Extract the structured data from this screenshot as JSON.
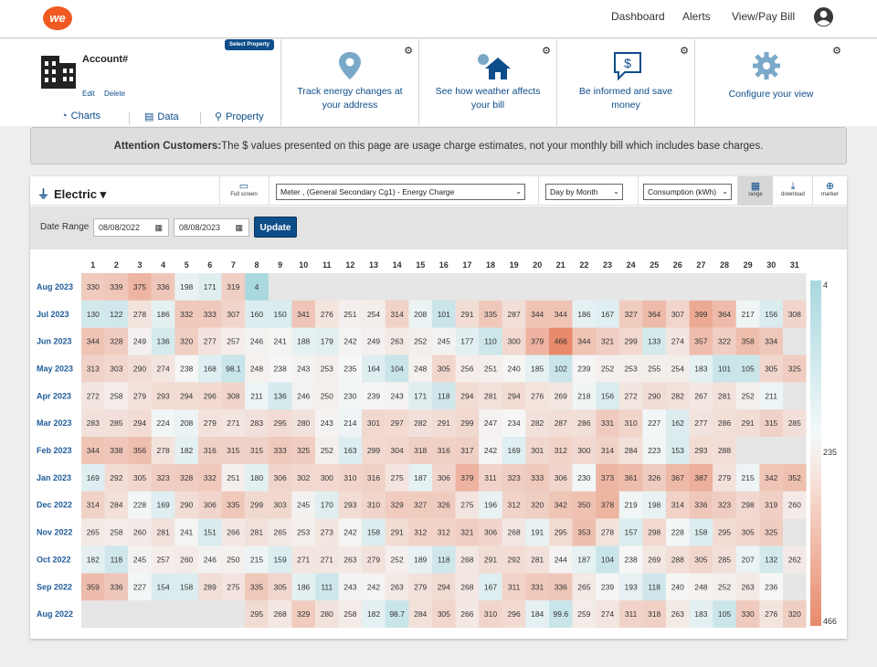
{
  "header": {
    "logo": "we",
    "nav": [
      "Dashboard",
      "Alerts",
      "View/Pay Bill"
    ]
  },
  "account": {
    "title": "Account#",
    "select_property": "Select Property",
    "edit": "Edit",
    "delete": "Delete",
    "tabs": [
      "Charts",
      "Data",
      "Property"
    ]
  },
  "cards": [
    {
      "text": "Track energy changes at your address",
      "icon": "map-pin-icon"
    },
    {
      "text": "See how weather affects your bill",
      "icon": "weather-house-icon"
    },
    {
      "text": "Be informed and save money",
      "icon": "dollar-chat-icon"
    },
    {
      "text": "Configure your view",
      "icon": "gear-icon"
    }
  ],
  "banner": {
    "bold": "Attention Customers:",
    "text": "The $ values presented on this page are usage charge estimates, not your monthly bill which includes base charges."
  },
  "toolbar": {
    "service": "Electric",
    "fullscreen": "Full screen",
    "meter": "Meter                              , (General Secondary Cg1) - Energy Charge",
    "view": "Day by Month",
    "measure": "Consumption (kWh)",
    "range": "range",
    "download": "download",
    "marker": "marker"
  },
  "daterange": {
    "label": "Date Range",
    "start": "08/08/2022",
    "end": "08/08/2023",
    "update": "Update"
  },
  "chart_data": {
    "type": "heatmap",
    "x_labels": [
      "1",
      "2",
      "3",
      "4",
      "5",
      "6",
      "7",
      "8",
      "9",
      "10",
      "11",
      "12",
      "13",
      "14",
      "15",
      "16",
      "17",
      "18",
      "19",
      "20",
      "21",
      "22",
      "23",
      "24",
      "25",
      "26",
      "27",
      "28",
      "29",
      "30",
      "31"
    ],
    "y_labels": [
      "Aug 2023",
      "Jul 2023",
      "Jun 2023",
      "May 2023",
      "Apr 2023",
      "Mar 2023",
      "Feb 2023",
      "Jan 2023",
      "Dec 2022",
      "Nov 2022",
      "Oct 2022",
      "Sep 2022",
      "Aug 2022"
    ],
    "values": [
      [
        330,
        339,
        375,
        336,
        198,
        171,
        319,
        4,
        null,
        null,
        null,
        null,
        null,
        null,
        null,
        null,
        null,
        null,
        null,
        null,
        null,
        null,
        null,
        null,
        null,
        null,
        null,
        null,
        null,
        null,
        null
      ],
      [
        130,
        122,
        278,
        186,
        332,
        333,
        307,
        160,
        150,
        341,
        276,
        251,
        254,
        314,
        208,
        101,
        291,
        335,
        287,
        344,
        344,
        186,
        167,
        327,
        364,
        307,
        399,
        364,
        217,
        156,
        308
      ],
      [
        344,
        328,
        249,
        136,
        320,
        277,
        257,
        246,
        241,
        188,
        179,
        242,
        249,
        263,
        252,
        245,
        177,
        110,
        300,
        379,
        466,
        344,
        321,
        299,
        133,
        274,
        357,
        322,
        358,
        334,
        null
      ],
      [
        313,
        303,
        290,
        274,
        238,
        168,
        98.1,
        248,
        238,
        243,
        253,
        235,
        164,
        104,
        248,
        305,
        256,
        251,
        240,
        185,
        102,
        239,
        252,
        253,
        255,
        254,
        183,
        101,
        105,
        305,
        325
      ],
      [
        272,
        258,
        279,
        293,
        294,
        296,
        308,
        211,
        136,
        246,
        250,
        230,
        239,
        243,
        171,
        118,
        294,
        281,
        294,
        276,
        269,
        218,
        156,
        272,
        290,
        282,
        267,
        281,
        252,
        211,
        null
      ],
      [
        283,
        285,
        294,
        224,
        208,
        279,
        271,
        283,
        295,
        280,
        243,
        214,
        301,
        297,
        282,
        291,
        299,
        247,
        234,
        282,
        287,
        286,
        331,
        310,
        227,
        162,
        277,
        286,
        291,
        315,
        285
      ],
      [
        344,
        338,
        356,
        278,
        182,
        316,
        315,
        315,
        333,
        325,
        252,
        163,
        299,
        304,
        318,
        316,
        317,
        242,
        169,
        301,
        312,
        300,
        314,
        284,
        223,
        153,
        293,
        288,
        null,
        null,
        null
      ],
      [
        169,
        292,
        305,
        323,
        328,
        332,
        251,
        180,
        306,
        302,
        300,
        310,
        316,
        275,
        187,
        306,
        379,
        311,
        323,
        333,
        306,
        230,
        373,
        361,
        326,
        367,
        387,
        279,
        215,
        342,
        352
      ],
      [
        314,
        284,
        228,
        169,
        290,
        306,
        335,
        299,
        303,
        245,
        170,
        293,
        310,
        329,
        327,
        326,
        275,
        196,
        312,
        320,
        342,
        350,
        378,
        219,
        198,
        314,
        336,
        323,
        298,
        319,
        260
      ],
      [
        265,
        258,
        260,
        281,
        241,
        151,
        266,
        281,
        265,
        253,
        273,
        242,
        158,
        291,
        312,
        312,
        321,
        306,
        268,
        191,
        295,
        353,
        278,
        157,
        298,
        228,
        158,
        295,
        305,
        325,
        null
      ],
      [
        182,
        118,
        245,
        257,
        260,
        246,
        250,
        215,
        159,
        271,
        271,
        263,
        279,
        252,
        189,
        118,
        268,
        291,
        292,
        281,
        244,
        187,
        104,
        238,
        269,
        288,
        305,
        285,
        207,
        132,
        262
      ],
      [
        359,
        336,
        227,
        154,
        158,
        289,
        275,
        335,
        305,
        186,
        111,
        243,
        242,
        263,
        279,
        294,
        268,
        167,
        311,
        331,
        336,
        265,
        239,
        193,
        118,
        240,
        248,
        252,
        263,
        236,
        null
      ],
      [
        null,
        null,
        null,
        null,
        null,
        null,
        null,
        295,
        268,
        329,
        280,
        258,
        182,
        98.7,
        284,
        305,
        266,
        310,
        296,
        184,
        99.6,
        259,
        274,
        311,
        318,
        263,
        183,
        105,
        330,
        276,
        320
      ]
    ],
    "scale_min": 4,
    "scale_mid": 235,
    "scale_max": 466,
    "legend_labels": [
      "4",
      "235",
      "466"
    ],
    "colors": {
      "low": "#a9d8df",
      "mid": "#f5f7f7",
      "high": "#e88a6b",
      "highlight": "#a8d8dc"
    }
  }
}
